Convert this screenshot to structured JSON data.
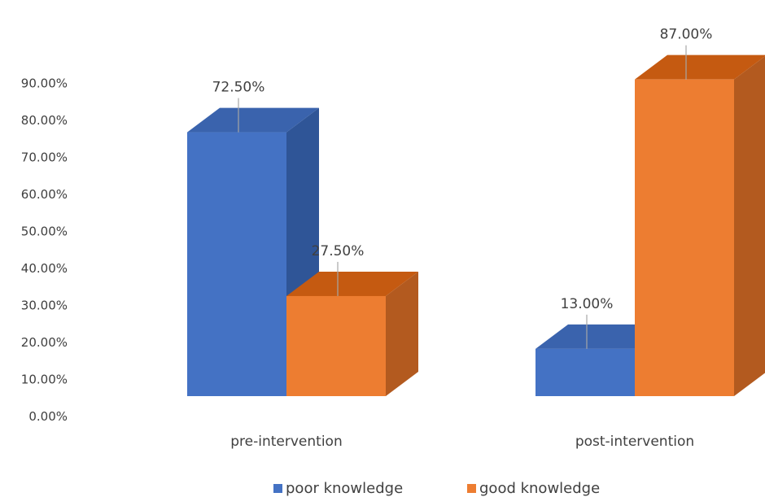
{
  "chart_data": {
    "type": "bar",
    "style": "3d-clustered-column",
    "categories": [
      "pre-intervention",
      "post-intervention"
    ],
    "series": [
      {
        "name": "poor knowledge",
        "values": [
          72.5,
          13.0
        ],
        "color": "#4472C4",
        "dark": "#2F5597",
        "top": "#3A63AD"
      },
      {
        "name": "good knowledge",
        "values": [
          27.5,
          87.0
        ],
        "color": "#ED7D31",
        "dark": "#B35A1F",
        "top": "#C55A11"
      }
    ],
    "data_labels": [
      [
        "72.50%",
        "13.00%"
      ],
      [
        "27.50%",
        "87.00%"
      ]
    ],
    "yticks": [
      "0.00%",
      "10.00%",
      "20.00%",
      "30.00%",
      "40.00%",
      "50.00%",
      "60.00%",
      "70.00%",
      "80.00%",
      "90.00%"
    ],
    "ylim": [
      0,
      90
    ],
    "grid": false,
    "legend": "bottom",
    "title": "",
    "xlabel": "",
    "ylabel": ""
  }
}
